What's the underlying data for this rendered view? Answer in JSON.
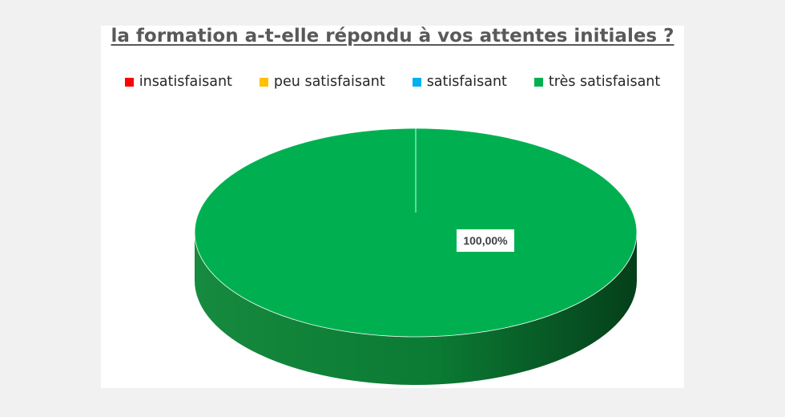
{
  "chart_data": {
    "type": "pie",
    "title": "la formation a-t-elle répondu à vos attentes initiales ?",
    "categories": [
      "insatisfaisant",
      "peu satisfaisant",
      "satisfaisant",
      "très satisfaisant"
    ],
    "values": [
      0,
      0,
      0,
      100
    ],
    "data_labels": [
      "",
      "",
      "",
      "100,00%"
    ],
    "colors": [
      "#ff0000",
      "#ffc000",
      "#00b0f0",
      "#00b050"
    ],
    "legend_position": "top",
    "style": "3d"
  }
}
